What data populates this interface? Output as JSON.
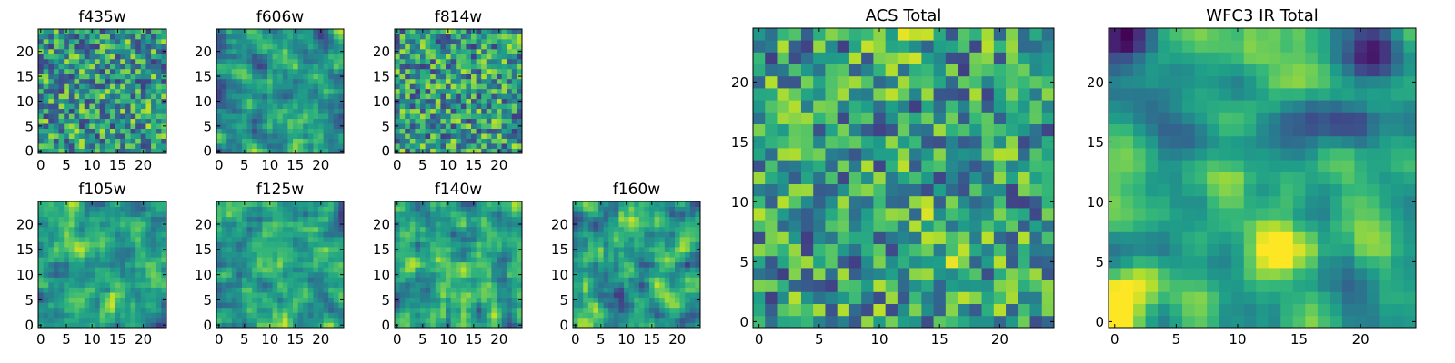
{
  "chart_data": [
    {
      "type": "heatmap",
      "title": "f435w",
      "xticks": [
        0,
        5,
        10,
        15,
        20
      ],
      "yticks": [
        0,
        5,
        10,
        15,
        20
      ],
      "xlim": [
        -0.5,
        24.5
      ],
      "ylim": [
        -0.5,
        24.5
      ],
      "grid": 25,
      "colormap": "viridis"
    },
    {
      "type": "heatmap",
      "title": "f606w",
      "xticks": [
        0,
        5,
        10,
        15,
        20
      ],
      "yticks": [
        0,
        5,
        10,
        15,
        20
      ],
      "xlim": [
        -0.5,
        24.5
      ],
      "ylim": [
        -0.5,
        24.5
      ],
      "grid": 25,
      "colormap": "viridis"
    },
    {
      "type": "heatmap",
      "title": "f814w",
      "xticks": [
        0,
        5,
        10,
        15,
        20
      ],
      "yticks": [
        0,
        5,
        10,
        15,
        20
      ],
      "xlim": [
        -0.5,
        24.5
      ],
      "ylim": [
        -0.5,
        24.5
      ],
      "grid": 25,
      "colormap": "viridis"
    },
    {
      "type": "heatmap",
      "title": "f105w",
      "xticks": [
        0,
        5,
        10,
        15,
        20
      ],
      "yticks": [
        0,
        5,
        10,
        15,
        20
      ],
      "xlim": [
        -0.5,
        24.5
      ],
      "ylim": [
        -0.5,
        24.5
      ],
      "grid": 25,
      "colormap": "viridis"
    },
    {
      "type": "heatmap",
      "title": "f125w",
      "xticks": [
        0,
        5,
        10,
        15,
        20
      ],
      "yticks": [
        0,
        5,
        10,
        15,
        20
      ],
      "xlim": [
        -0.5,
        24.5
      ],
      "ylim": [
        -0.5,
        24.5
      ],
      "grid": 25,
      "colormap": "viridis"
    },
    {
      "type": "heatmap",
      "title": "f140w",
      "xticks": [
        0,
        5,
        10,
        15,
        20
      ],
      "yticks": [
        0,
        5,
        10,
        15,
        20
      ],
      "xlim": [
        -0.5,
        24.5
      ],
      "ylim": [
        -0.5,
        24.5
      ],
      "grid": 25,
      "colormap": "viridis"
    },
    {
      "type": "heatmap",
      "title": "f160w",
      "xticks": [
        0,
        5,
        10,
        15,
        20
      ],
      "yticks": [
        0,
        5,
        10,
        15,
        20
      ],
      "xlim": [
        -0.5,
        24.5
      ],
      "ylim": [
        -0.5,
        24.5
      ],
      "grid": 25,
      "colormap": "viridis"
    },
    {
      "type": "heatmap",
      "title": "ACS Total",
      "xticks": [
        0,
        5,
        10,
        15,
        20
      ],
      "yticks": [
        0,
        5,
        10,
        15,
        20
      ],
      "xlim": [
        -0.5,
        24.5
      ],
      "ylim": [
        -0.5,
        24.5
      ],
      "grid": 25,
      "colormap": "viridis"
    },
    {
      "type": "heatmap",
      "title": "WFC3 IR Total",
      "xticks": [
        0,
        5,
        10,
        15,
        20
      ],
      "yticks": [
        0,
        5,
        10,
        15,
        20
      ],
      "xlim": [
        -0.5,
        24.5
      ],
      "ylim": [
        -0.5,
        24.5
      ],
      "grid": 25,
      "colormap": "viridis"
    }
  ]
}
